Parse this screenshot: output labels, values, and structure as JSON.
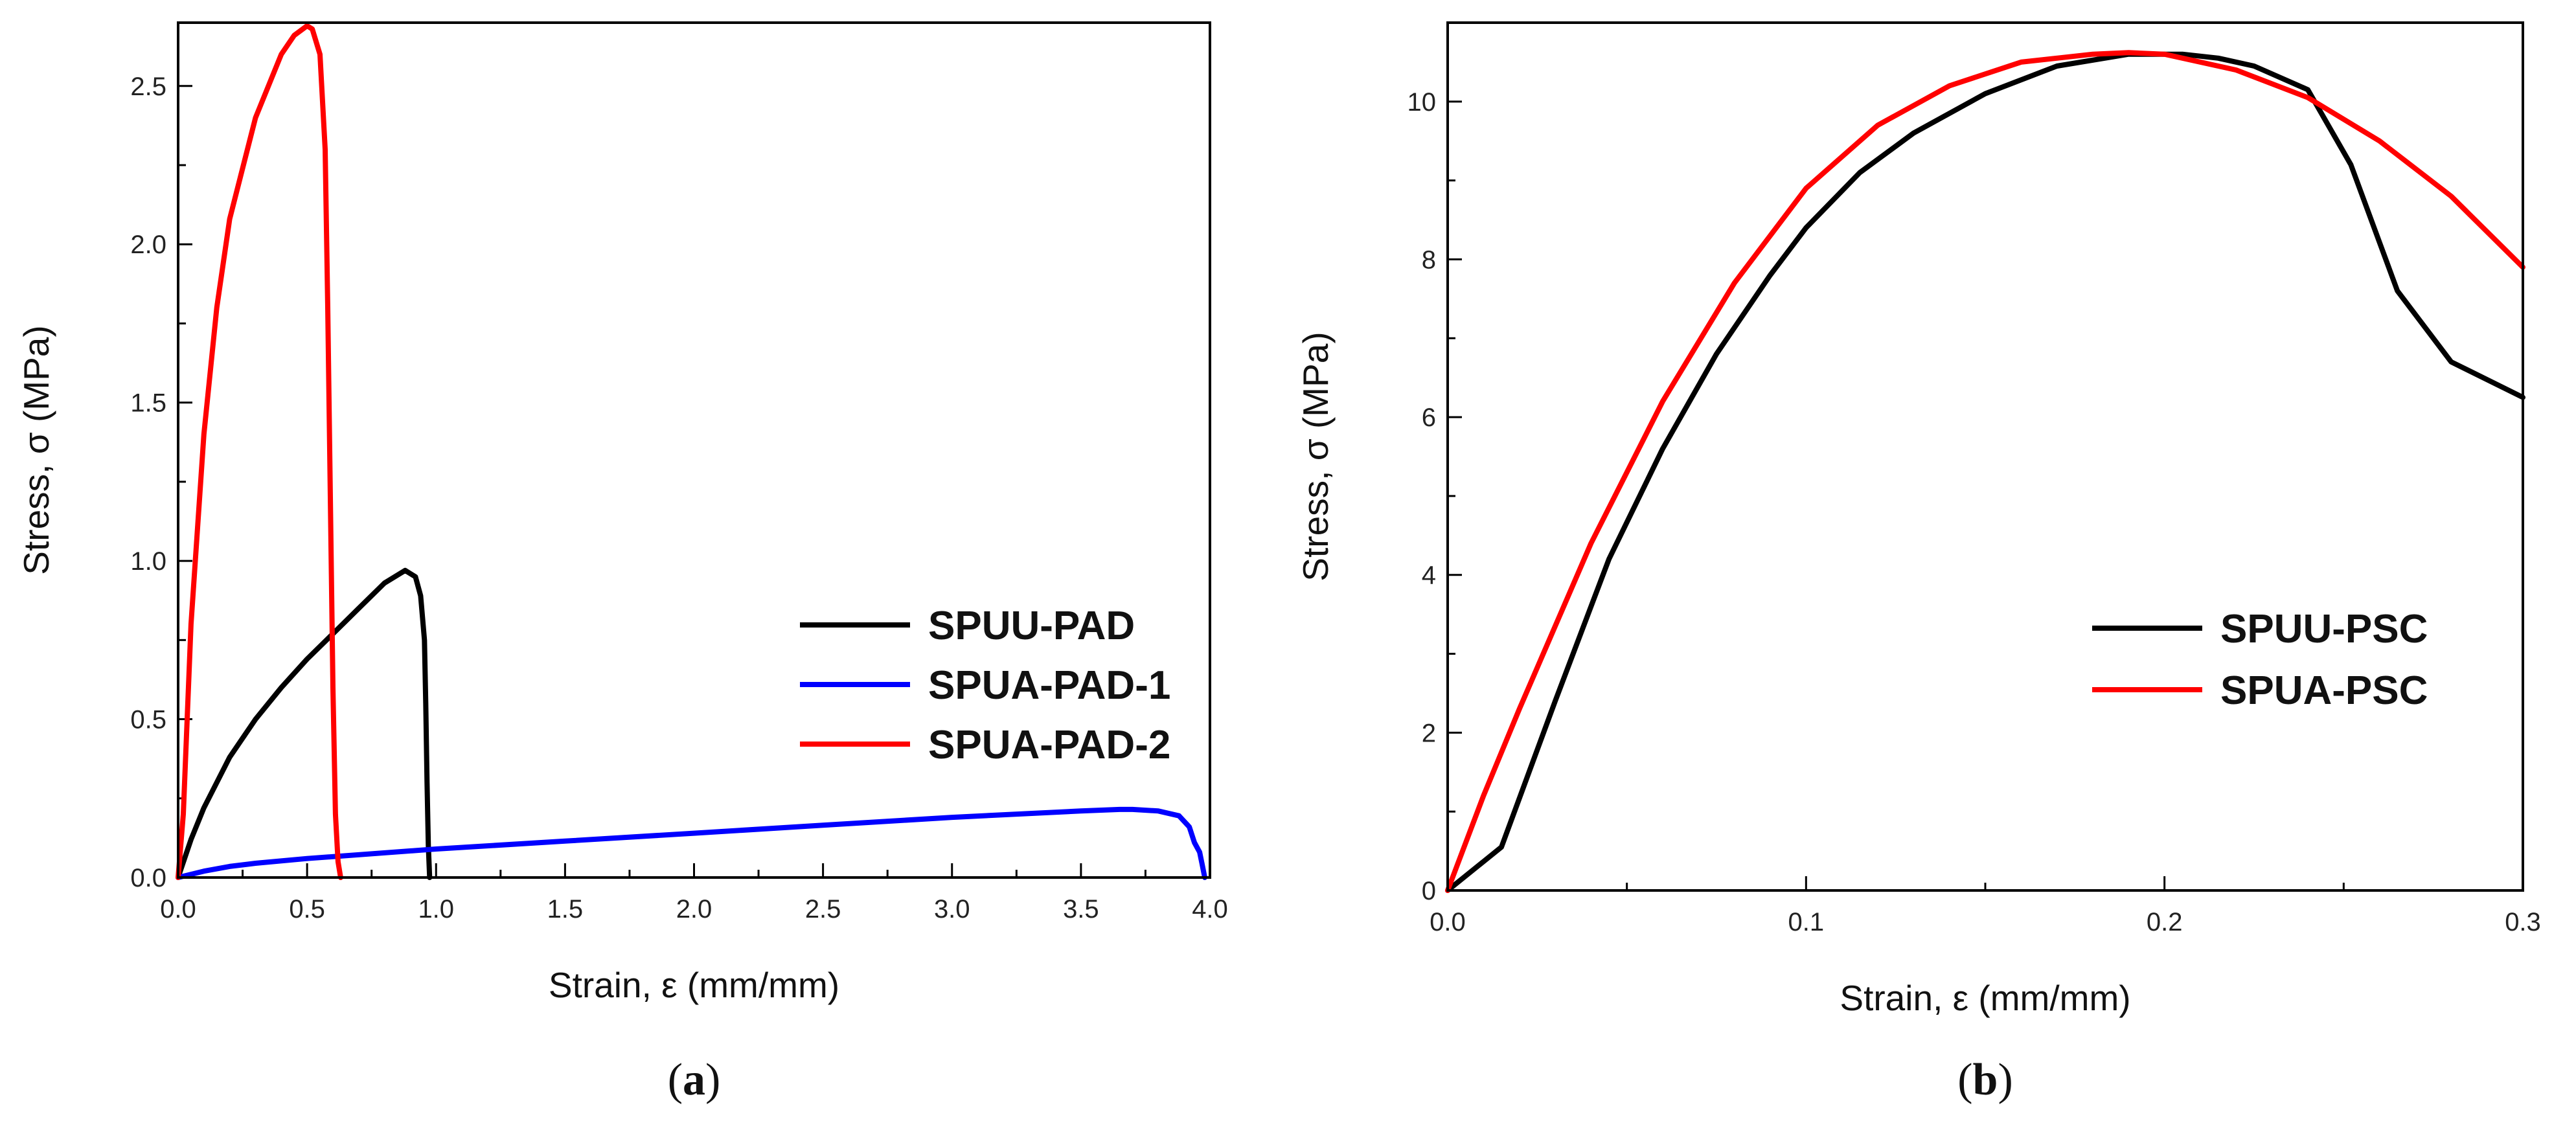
{
  "chart_data": [
    {
      "type": "line",
      "panel_label": "a",
      "xlabel": "Strain, ε (mm/mm)",
      "ylabel": "Stress, σ (MPa)",
      "xlim": [
        0.0,
        4.0
      ],
      "ylim": [
        0.0,
        2.7
      ],
      "xticks": [
        0.0,
        0.5,
        1.0,
        1.5,
        2.0,
        2.5,
        3.0,
        3.5,
        4.0
      ],
      "xtick_labels": [
        "0.0",
        "0.5",
        "1.0",
        "1.5",
        "2.0",
        "2.5",
        "3.0",
        "3.5",
        "4.0"
      ],
      "yticks": [
        0.0,
        0.5,
        1.0,
        1.5,
        2.0,
        2.5
      ],
      "ytick_labels": [
        "0.0",
        "0.5",
        "1.0",
        "1.5",
        "2.0",
        "2.5"
      ],
      "legend_position": "center-right",
      "series": [
        {
          "name": "SPUU-PAD",
          "color": "#000000",
          "x": [
            0.0,
            0.05,
            0.1,
            0.2,
            0.3,
            0.4,
            0.5,
            0.6,
            0.7,
            0.8,
            0.88,
            0.92,
            0.94,
            0.955,
            0.96,
            0.965,
            0.97,
            0.975
          ],
          "y": [
            0.0,
            0.12,
            0.22,
            0.38,
            0.5,
            0.6,
            0.69,
            0.77,
            0.85,
            0.93,
            0.97,
            0.95,
            0.89,
            0.75,
            0.55,
            0.3,
            0.1,
            0.0
          ]
        },
        {
          "name": "SPUA-PAD-1",
          "color": "#0000ff",
          "x": [
            0.0,
            0.1,
            0.2,
            0.3,
            0.5,
            1.0,
            1.5,
            2.0,
            2.5,
            3.0,
            3.5,
            3.65,
            3.7,
            3.8,
            3.88,
            3.92,
            3.94,
            3.96,
            3.97,
            3.98
          ],
          "y": [
            0.0,
            0.02,
            0.035,
            0.045,
            0.06,
            0.09,
            0.115,
            0.14,
            0.165,
            0.19,
            0.21,
            0.215,
            0.215,
            0.21,
            0.195,
            0.16,
            0.11,
            0.08,
            0.04,
            0.0
          ]
        },
        {
          "name": "SPUA-PAD-2",
          "color": "#ff0000",
          "x": [
            0.0,
            0.02,
            0.05,
            0.1,
            0.15,
            0.2,
            0.3,
            0.4,
            0.45,
            0.5,
            0.52,
            0.55,
            0.57,
            0.58,
            0.59,
            0.6,
            0.61,
            0.62,
            0.63
          ],
          "y": [
            0.0,
            0.2,
            0.8,
            1.4,
            1.8,
            2.08,
            2.4,
            2.6,
            2.66,
            2.69,
            2.68,
            2.6,
            2.3,
            1.8,
            1.2,
            0.6,
            0.2,
            0.05,
            0.0
          ]
        }
      ]
    },
    {
      "type": "line",
      "panel_label": "b",
      "xlabel": "Strain, ε (mm/mm)",
      "ylabel": "Stress, σ (MPa)",
      "xlim": [
        0.0,
        0.3
      ],
      "ylim": [
        0.0,
        11.0
      ],
      "xticks": [
        0.0,
        0.1,
        0.2,
        0.3
      ],
      "xtick_labels": [
        "0.0",
        "0.1",
        "0.2",
        "0.3"
      ],
      "yticks": [
        0,
        2,
        4,
        6,
        8,
        10
      ],
      "ytick_labels": [
        "0",
        "2",
        "4",
        "6",
        "8",
        "10"
      ],
      "legend_position": "lower-right",
      "series": [
        {
          "name": "SPUU-PSC",
          "color": "#000000",
          "x": [
            0.0,
            0.015,
            0.03,
            0.045,
            0.06,
            0.075,
            0.09,
            0.1,
            0.115,
            0.13,
            0.15,
            0.17,
            0.19,
            0.205,
            0.215,
            0.225,
            0.24,
            0.252,
            0.265,
            0.28,
            0.3
          ],
          "y": [
            0.0,
            0.55,
            2.4,
            4.2,
            5.6,
            6.8,
            7.8,
            8.4,
            9.1,
            9.6,
            10.1,
            10.45,
            10.6,
            10.6,
            10.55,
            10.45,
            10.15,
            9.2,
            7.6,
            6.7,
            6.25
          ]
        },
        {
          "name": "SPUA-PSC",
          "color": "#ff0000",
          "x": [
            0.0,
            0.01,
            0.02,
            0.04,
            0.06,
            0.08,
            0.1,
            0.12,
            0.14,
            0.16,
            0.18,
            0.19,
            0.2,
            0.22,
            0.24,
            0.26,
            0.28,
            0.3
          ],
          "y": [
            0.0,
            1.2,
            2.3,
            4.4,
            6.2,
            7.7,
            8.9,
            9.7,
            10.2,
            10.5,
            10.6,
            10.62,
            10.6,
            10.4,
            10.05,
            9.5,
            8.8,
            7.9
          ]
        }
      ]
    }
  ]
}
